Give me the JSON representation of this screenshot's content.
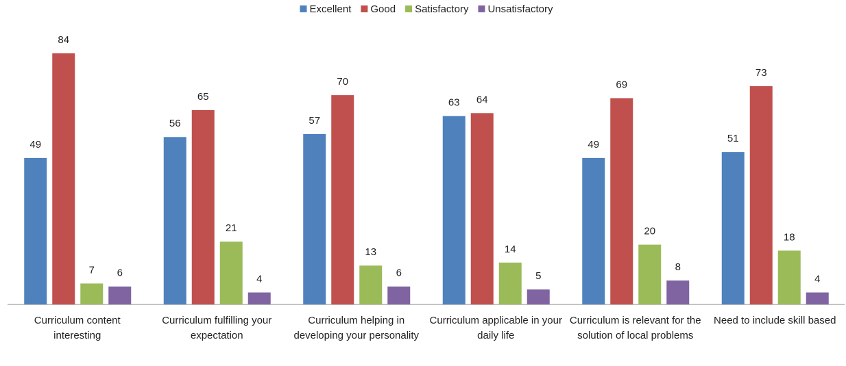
{
  "chart_data": {
    "type": "bar",
    "categories": [
      "Curriculum content interesting",
      "Curriculum fulfilling your expectation",
      "Curriculum helping in developing your personality",
      "Curriculum applicable in your daily life",
      "Curriculum is relevant for the solution of local problems",
      "Need to include skill based"
    ],
    "series": [
      {
        "name": "Excellent",
        "color": "#4f81bd",
        "values": [
          49,
          56,
          57,
          63,
          49,
          51
        ]
      },
      {
        "name": "Good",
        "color": "#c0504d",
        "values": [
          84,
          65,
          70,
          64,
          69,
          73
        ]
      },
      {
        "name": "Satisfactory",
        "color": "#9bbb59",
        "values": [
          7,
          21,
          13,
          14,
          20,
          18
        ]
      },
      {
        "name": "Unsatisfactory",
        "color": "#8064a2",
        "values": [
          6,
          4,
          6,
          5,
          8,
          4
        ]
      }
    ],
    "legend": "top"
  }
}
